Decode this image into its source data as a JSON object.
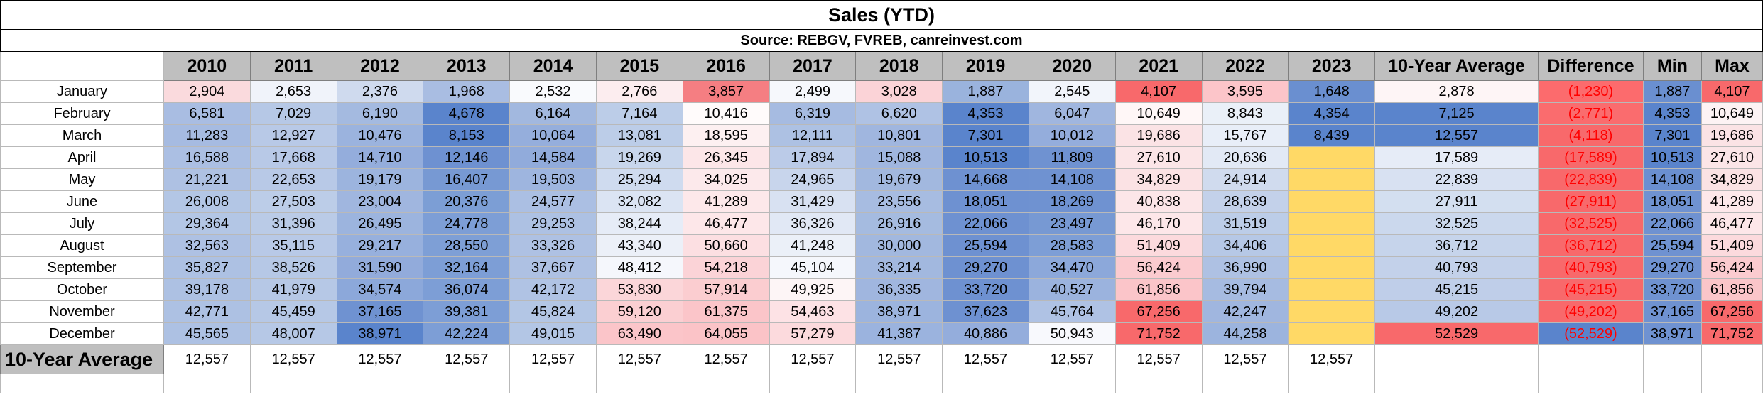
{
  "title": "Sales (YTD)",
  "source": "Source: REBGV, FVREB, canreinvest.com",
  "chart_data": {
    "type": "table",
    "title": "Sales (YTD)",
    "subtitle": "Source: REBGV, FVREB, canreinvest.com",
    "columns": [
      "2010",
      "2011",
      "2012",
      "2013",
      "2014",
      "2015",
      "2016",
      "2017",
      "2018",
      "2019",
      "2020",
      "2021",
      "2022",
      "2023",
      "10-Year Average",
      "Difference",
      "Min",
      "Max"
    ],
    "rows": [
      {
        "label": "January",
        "cells": [
          "2,904",
          "2,653",
          "2,376",
          "1,968",
          "2,532",
          "2,766",
          "3,857",
          "2,499",
          "3,028",
          "1,887",
          "2,545",
          "4,107",
          "3,595",
          "1,648",
          "2,878",
          "(1,230)",
          "1,887",
          "4,107"
        ]
      },
      {
        "label": "February",
        "cells": [
          "6,581",
          "7,029",
          "6,190",
          "4,678",
          "6,164",
          "7,164",
          "10,416",
          "6,319",
          "6,620",
          "4,353",
          "6,047",
          "10,649",
          "8,843",
          "4,354",
          "7,125",
          "(2,771)",
          "4,353",
          "10,649"
        ]
      },
      {
        "label": "March",
        "cells": [
          "11,283",
          "12,927",
          "10,476",
          "8,153",
          "10,064",
          "13,081",
          "18,595",
          "12,111",
          "10,801",
          "7,301",
          "10,012",
          "19,686",
          "15,767",
          "8,439",
          "12,557",
          "(4,118)",
          "7,301",
          "19,686"
        ]
      },
      {
        "label": "April",
        "cells": [
          "16,588",
          "17,668",
          "14,710",
          "12,146",
          "14,584",
          "19,269",
          "26,345",
          "17,894",
          "15,088",
          "10,513",
          "11,809",
          "27,610",
          "20,636",
          "",
          "17,589",
          "(17,589)",
          "10,513",
          "27,610"
        ]
      },
      {
        "label": "May",
        "cells": [
          "21,221",
          "22,653",
          "19,179",
          "16,407",
          "19,503",
          "25,294",
          "34,025",
          "24,965",
          "19,679",
          "14,668",
          "14,108",
          "34,829",
          "24,914",
          "",
          "22,839",
          "(22,839)",
          "14,108",
          "34,829"
        ]
      },
      {
        "label": "June",
        "cells": [
          "26,008",
          "27,503",
          "23,004",
          "20,376",
          "24,577",
          "32,082",
          "41,289",
          "31,429",
          "23,556",
          "18,051",
          "18,269",
          "40,838",
          "28,639",
          "",
          "27,911",
          "(27,911)",
          "18,051",
          "41,289"
        ]
      },
      {
        "label": "July",
        "cells": [
          "29,364",
          "31,396",
          "26,495",
          "24,778",
          "29,253",
          "38,244",
          "46,477",
          "36,326",
          "26,916",
          "22,066",
          "23,497",
          "46,170",
          "31,519",
          "",
          "32,525",
          "(32,525)",
          "22,066",
          "46,477"
        ]
      },
      {
        "label": "August",
        "cells": [
          "32,563",
          "35,115",
          "29,217",
          "28,550",
          "33,326",
          "43,340",
          "50,660",
          "41,248",
          "30,000",
          "25,594",
          "28,583",
          "51,409",
          "34,406",
          "",
          "36,712",
          "(36,712)",
          "25,594",
          "51,409"
        ]
      },
      {
        "label": "September",
        "cells": [
          "35,827",
          "38,526",
          "31,590",
          "32,164",
          "37,667",
          "48,412",
          "54,218",
          "45,104",
          "33,214",
          "29,270",
          "34,470",
          "56,424",
          "36,990",
          "",
          "40,793",
          "(40,793)",
          "29,270",
          "56,424"
        ]
      },
      {
        "label": "October",
        "cells": [
          "39,178",
          "41,979",
          "34,574",
          "36,074",
          "42,172",
          "53,830",
          "57,914",
          "49,925",
          "36,335",
          "33,720",
          "40,527",
          "61,856",
          "39,794",
          "",
          "45,215",
          "(45,215)",
          "33,720",
          "61,856"
        ]
      },
      {
        "label": "November",
        "cells": [
          "42,771",
          "45,459",
          "37,165",
          "39,381",
          "45,824",
          "59,120",
          "61,375",
          "54,463",
          "38,971",
          "37,623",
          "45,764",
          "67,256",
          "42,247",
          "",
          "49,202",
          "(49,202)",
          "37,165",
          "67,256"
        ]
      },
      {
        "label": "December",
        "cells": [
          "45,565",
          "48,007",
          "38,971",
          "42,224",
          "49,015",
          "63,490",
          "64,055",
          "57,279",
          "41,387",
          "40,886",
          "50,943",
          "71,752",
          "44,258",
          "",
          "52,529",
          "(52,529)",
          "38,971",
          "71,752"
        ]
      }
    ],
    "footer": {
      "label": "10-Year Average",
      "cells": [
        "12,557",
        "12,557",
        "12,557",
        "12,557",
        "12,557",
        "12,557",
        "12,557",
        "12,557",
        "12,557",
        "12,557",
        "12,557",
        "12,557",
        "12,557",
        "12,557"
      ]
    },
    "cell_colors": [
      [
        "#fadadd",
        "#f0f3fa",
        "#cfdaee",
        "#a9bde2",
        "#f9fafd",
        "#fcedef",
        "#f57e82",
        "#f6f8fc",
        "#fbd3d7",
        "#9ab3dd",
        "#f2f5fb",
        "#f8696b",
        "#fcc5c9",
        "#6a8fd0",
        "#fef5f6",
        "#fc6b6d",
        "#6a8fd0",
        "#f8696b"
      ],
      [
        "#a9bde2",
        "#b6c8e6",
        "#a4bae0",
        "#5a84cc",
        "#a2b8df",
        "#bccde8",
        "#fffbfb",
        "#a6bbe1",
        "#afc2e4",
        "#5a84cc",
        "#a0b6df",
        "#fff7f7",
        "#eaf0f8",
        "#5a84cc",
        "#5a84cc",
        "#fa6c6e",
        "#5a84cc",
        "#fdf3f4"
      ],
      [
        "#a6bbe1",
        "#b8c9e7",
        "#9bb3de",
        "#5a84cc",
        "#95aedc",
        "#bccde8",
        "#fdf0f1",
        "#adc1e3",
        "#a0b6df",
        "#5a84cc",
        "#94addc",
        "#fbe3e5",
        "#e8eef8",
        "#5a84cc",
        "#5a84cc",
        "#f8696b",
        "#5a84cc",
        "#fbe3e5"
      ],
      [
        "#abbfe3",
        "#b8c9e7",
        "#94addc",
        "#6e91d1",
        "#91abdb",
        "#c8d6ec",
        "#fce6e8",
        "#bbcbe8",
        "#a0b6df",
        "#5a84cc",
        "#6f92d1",
        "#fbe5e7",
        "#e2e9f5",
        "#ffd966",
        "#e6ecf7",
        "#f8696b",
        "#5a84cc",
        "#fbe5e7"
      ],
      [
        "#aec1e3",
        "#b8c9e7",
        "#9cb4de",
        "#7799d3",
        "#9eb5df",
        "#cfdbef",
        "#fce9eb",
        "#c8d5ec",
        "#a2b8df",
        "#6e91d1",
        "#6f92d1",
        "#fbe2e4",
        "#d0dbee",
        "#ffd966",
        "#d8e1f2",
        "#f8696b",
        "#6a8fd0",
        "#fbe2e4"
      ],
      [
        "#b3c6e5",
        "#bccde8",
        "#a0b6df",
        "#7c9ed5",
        "#abbfe3",
        "#dbe4f3",
        "#fde8ea",
        "#d8e1f2",
        "#a7bce1",
        "#6e91d1",
        "#6f92d1",
        "#fce6e8",
        "#c3d1ea",
        "#ffd966",
        "#d3dff0",
        "#f8696b",
        "#6f92d1",
        "#fde8ea"
      ],
      [
        "#b3c6e5",
        "#bacbe7",
        "#9cb4de",
        "#7d9ed6",
        "#adc1e3",
        "#e6ecf7",
        "#fde7e9",
        "#e1e8f5",
        "#a5bbe0",
        "#6e91d1",
        "#7799d3",
        "#fde7e9",
        "#bccde8",
        "#ffd966",
        "#cbd8ed",
        "#f8696b",
        "#6f92d1",
        "#fde7e9"
      ],
      [
        "#aec1e3",
        "#b8c9e7",
        "#97b0dd",
        "#7e9fd6",
        "#aec1e3",
        "#ecf0f8",
        "#fcdfe2",
        "#ebf0f8",
        "#a2b8df",
        "#6e91d1",
        "#7d9ed6",
        "#fcdadd",
        "#b6c8e6",
        "#ffd966",
        "#c6d4eb",
        "#f8696b",
        "#6f92d1",
        "#fcdadd"
      ],
      [
        "#adc1e3",
        "#b6c8e6",
        "#92abdb",
        "#7d9ed6",
        "#aec1e3",
        "#f5f7fc",
        "#fbd3d7",
        "#f5f7fc",
        "#a2b8df",
        "#6e91d1",
        "#8ca8da",
        "#fbcbcf",
        "#aec1e3",
        "#ffd966",
        "#c3d1ea",
        "#f8696b",
        "#6f92d1",
        "#fbcbcf"
      ],
      [
        "#adc1e3",
        "#b6c8e6",
        "#8ca8da",
        "#7d9ed6",
        "#b0c3e4",
        "#fbd6d9",
        "#fbcdd0",
        "#fdf5f6",
        "#a0b6df",
        "#6e91d1",
        "#9bb3de",
        "#fbc5c9",
        "#a6bbe1",
        "#ffd966",
        "#bfcee9",
        "#f8696b",
        "#6f92d1",
        "#fbc5c9"
      ],
      [
        "#adc1e3",
        "#b6c8e6",
        "#6f92d1",
        "#7d9ed6",
        "#b3c6e5",
        "#fbcfd2",
        "#fbc5c9",
        "#fde2e5",
        "#9cb4de",
        "#6e91d1",
        "#afc2e4",
        "#f8696b",
        "#a0b6df",
        "#ffd966",
        "#b8c9e7",
        "#f8696b",
        "#6f92d1",
        "#f8696b"
      ],
      [
        "#adc1e3",
        "#b6c8e6",
        "#5a84cc",
        "#7d9ed6",
        "#b3c6e5",
        "#fbc5c9",
        "#fbc3c7",
        "#fcdadd",
        "#9bb3de",
        "#94addc",
        "#f8f9fd",
        "#f8696b",
        "#9cb4de",
        "#ffd966",
        "#f8696b",
        "#5a84cc",
        "#6f92d1",
        "#f8696b"
      ]
    ]
  }
}
